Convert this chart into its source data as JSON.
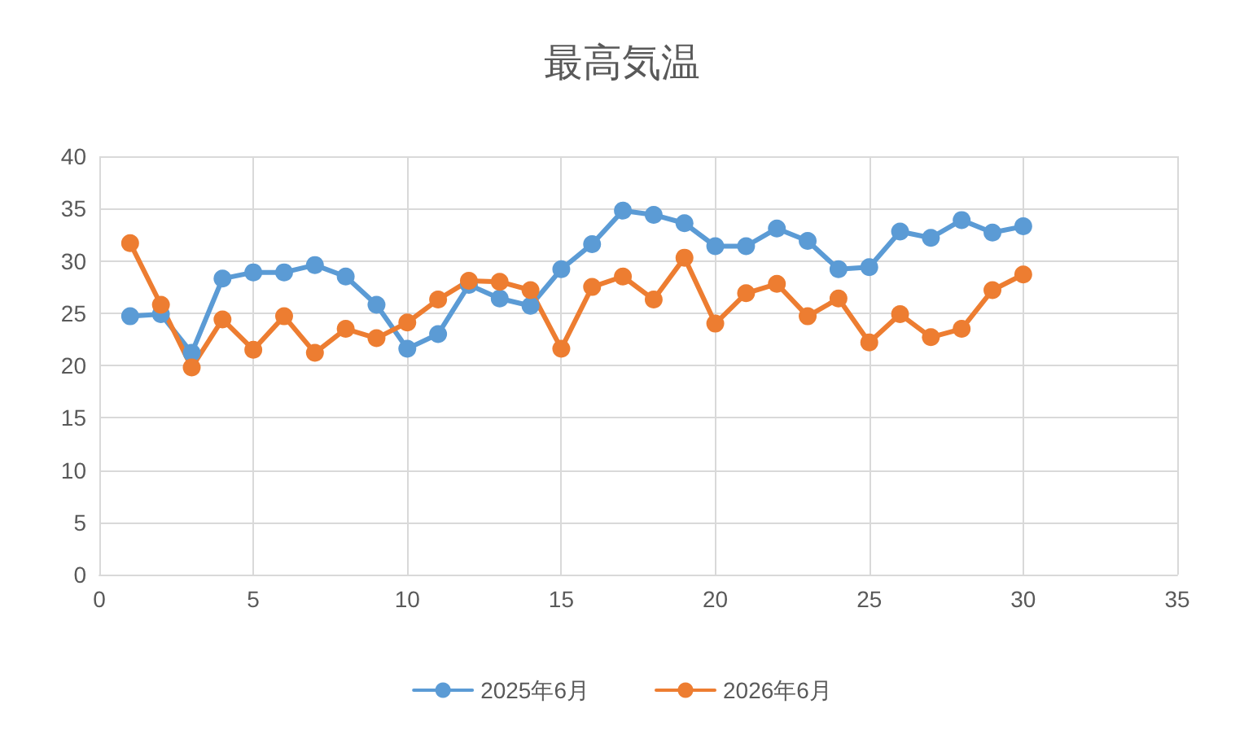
{
  "chart_data": {
    "type": "line",
    "title": "最高気温",
    "x": [
      1,
      2,
      3,
      4,
      5,
      6,
      7,
      8,
      9,
      10,
      11,
      12,
      13,
      14,
      15,
      16,
      17,
      18,
      19,
      20,
      21,
      22,
      23,
      24,
      25,
      26,
      27,
      28,
      29,
      30
    ],
    "series": [
      {
        "name": "2025年6月",
        "color": "#5b9bd5",
        "values": [
          24.7,
          24.9,
          21.2,
          28.3,
          28.9,
          28.9,
          29.6,
          28.5,
          25.8,
          21.6,
          23.0,
          27.7,
          26.4,
          25.7,
          29.2,
          31.6,
          34.8,
          34.4,
          33.6,
          31.4,
          31.4,
          33.1,
          31.9,
          29.2,
          29.4,
          32.8,
          32.2,
          33.9,
          32.7,
          33.3
        ]
      },
      {
        "name": "2026年6月",
        "color": "#ed7d31",
        "values": [
          31.7,
          25.8,
          19.8,
          24.4,
          21.5,
          24.7,
          21.2,
          23.5,
          22.6,
          24.1,
          26.3,
          28.1,
          28.0,
          27.2,
          21.6,
          27.5,
          28.5,
          26.3,
          30.3,
          24.0,
          26.9,
          27.8,
          24.7,
          26.4,
          22.2,
          24.9,
          22.7,
          23.5,
          27.2,
          28.7
        ]
      }
    ],
    "xlim": [
      0,
      35
    ],
    "xticks": [
      0,
      5,
      10,
      15,
      20,
      25,
      30,
      35
    ],
    "ylim": [
      0,
      40
    ],
    "yticks": [
      0,
      5,
      10,
      15,
      20,
      25,
      30,
      35,
      40
    ],
    "grid": true,
    "legend": "bottom",
    "marker": "circle",
    "line_style": "solid"
  }
}
